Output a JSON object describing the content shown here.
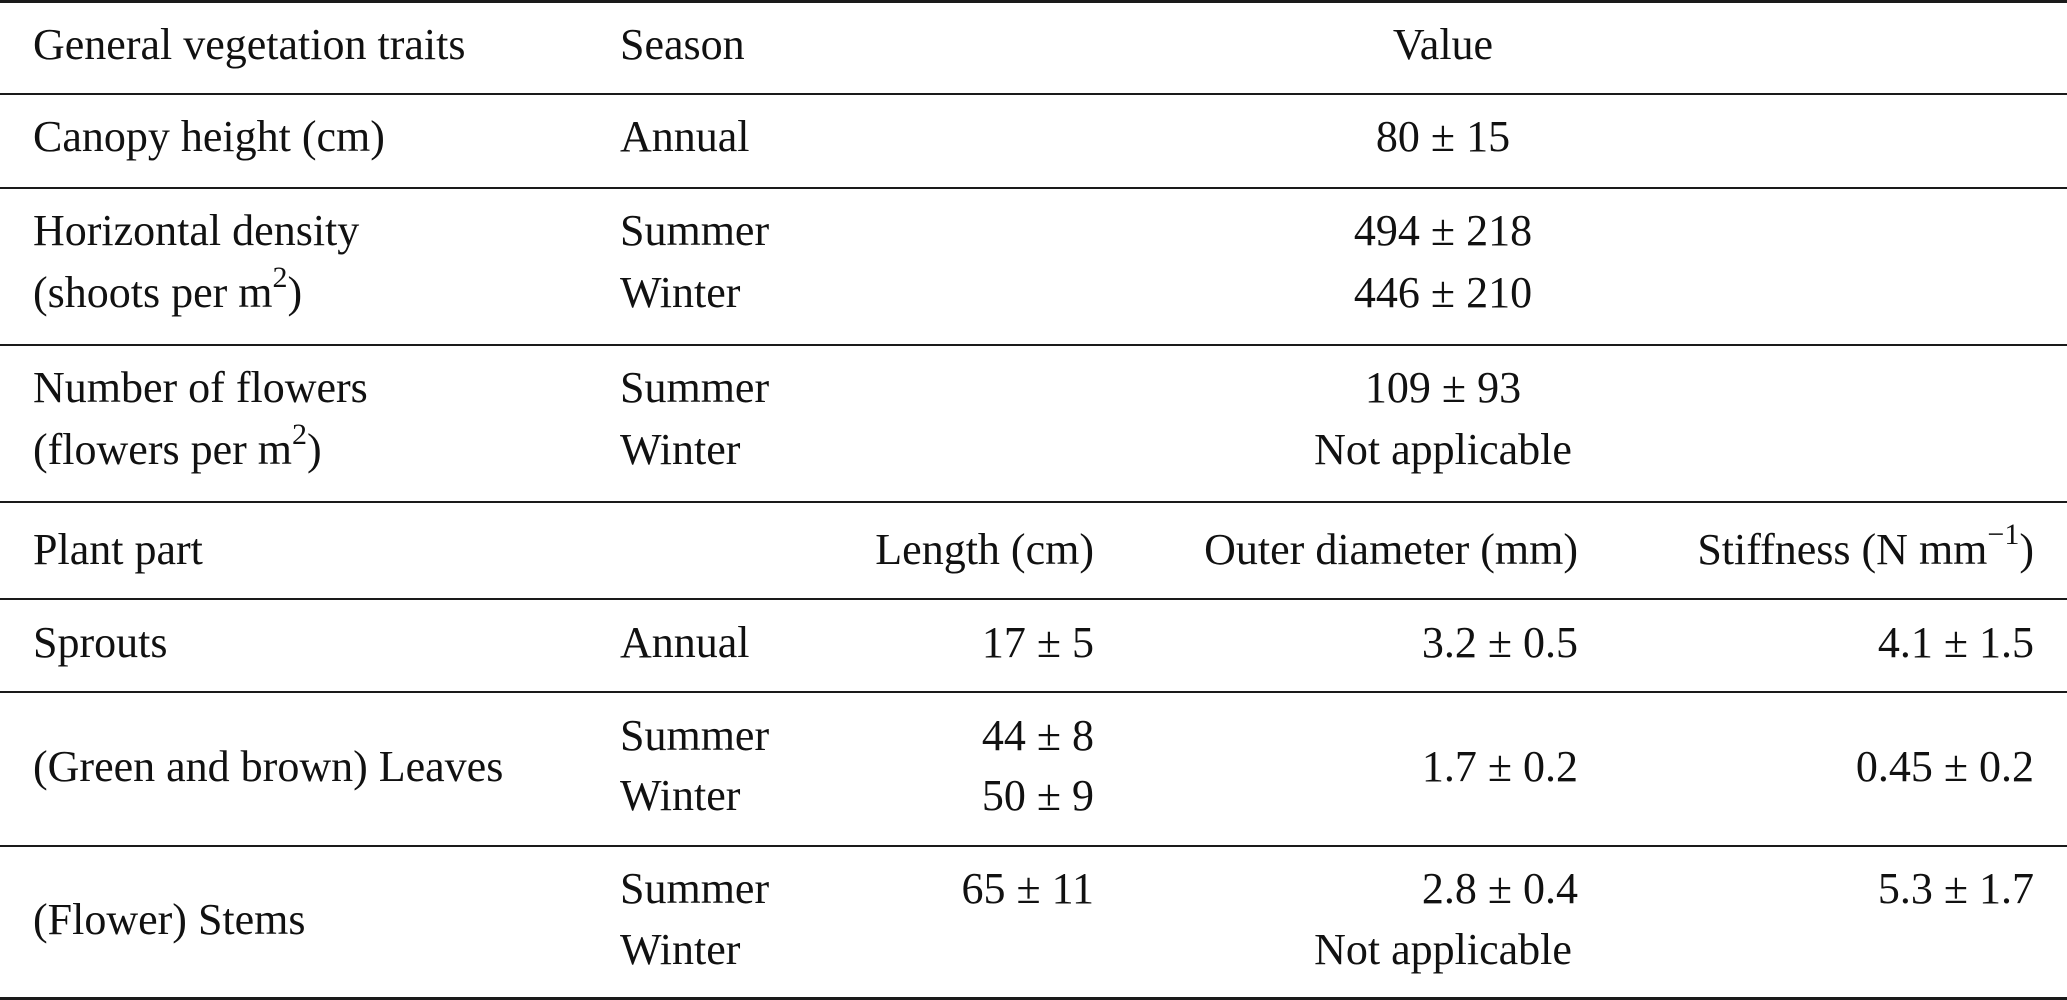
{
  "top": {
    "header": {
      "trait": "General vegetation traits",
      "season": "Season",
      "value": "Value"
    },
    "rows": [
      {
        "trait_lines": [
          "Canopy height (cm)"
        ],
        "seasons": [
          "Annual"
        ],
        "values": [
          "80 ± 15"
        ]
      },
      {
        "trait_lines": [
          "Horizontal density",
          "(shoots per m",
          "2",
          ")"
        ],
        "seasons": [
          "Summer",
          "Winter"
        ],
        "values": [
          "494 ± 218",
          "446 ± 210"
        ]
      },
      {
        "trait_lines": [
          "Number of flowers",
          "(flowers per m",
          "2",
          ")"
        ],
        "seasons": [
          "Summer",
          "Winter"
        ],
        "values": [
          "109 ± 93",
          "Not applicable"
        ]
      }
    ]
  },
  "bottom": {
    "header": {
      "part": "Plant part",
      "length": "Length (cm)",
      "diameter": "Outer diameter (mm)",
      "stiffness_prefix": "Stiffness (N mm",
      "stiffness_sup": "−1",
      "stiffness_suffix": ")"
    },
    "rows": [
      {
        "part": "Sprouts",
        "seasons": [
          "Annual"
        ],
        "length": [
          "17 ± 5"
        ],
        "diameter": "3.2 ± 0.5",
        "stiffness": "4.1 ± 1.5"
      },
      {
        "part": "(Green and brown) Leaves",
        "seasons": [
          "Summer",
          "Winter"
        ],
        "length": [
          "44 ± 8",
          "50 ± 9"
        ],
        "diameter": "1.7 ± 0.2",
        "stiffness": "0.45 ± 0.2"
      },
      {
        "part": "(Flower) Stems",
        "seasons": [
          "Summer",
          "Winter"
        ],
        "length": [
          "65 ± 11"
        ],
        "diameter": "2.8 ± 0.4",
        "stiffness": "5.3 ± 1.7",
        "winter_note": "Not applicable"
      }
    ]
  }
}
